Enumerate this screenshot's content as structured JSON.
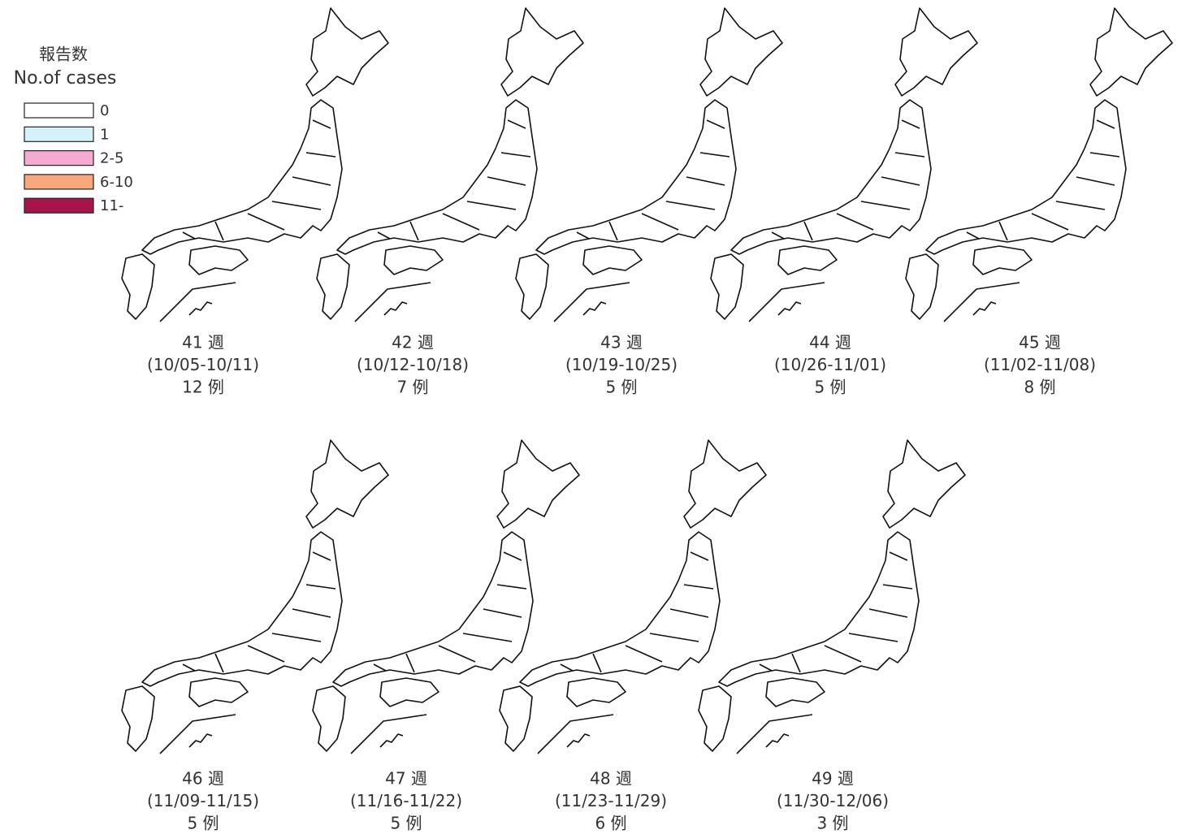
{
  "legend": {
    "title": "報告数",
    "subtitle": "No.of cases",
    "items": [
      {
        "label": "0",
        "color": "#ffffff"
      },
      {
        "label": "1",
        "color": "#d6f1f8"
      },
      {
        "label": "2-5",
        "color": "#f6a9d2"
      },
      {
        "label": "6-10",
        "color": "#f8a77c"
      },
      {
        "label": "11-",
        "color": "#a5154b"
      }
    ]
  },
  "panels": [
    {
      "week": "41 週",
      "dates": "(10/05-10/11)",
      "cases": "12 例"
    },
    {
      "week": "42 週",
      "dates": "(10/12-10/18)",
      "cases": "7 例"
    },
    {
      "week": "43 週",
      "dates": "(10/19-10/25)",
      "cases": "5 例"
    },
    {
      "week": "44 週",
      "dates": "(10/26-11/01)",
      "cases": "5 例"
    },
    {
      "week": "45 週",
      "dates": "(11/02-11/08)",
      "cases": "8 例"
    },
    {
      "week": "46 週",
      "dates": "(11/09-11/15)",
      "cases": "5 例"
    },
    {
      "week": "47 週",
      "dates": "(11/16-11/22)",
      "cases": "5 例"
    },
    {
      "week": "48 週",
      "dates": "(11/23-11/29)",
      "cases": "6 例"
    },
    {
      "week": "49 週",
      "dates": "(11/30-12/06)",
      "cases": "3 例"
    }
  ]
}
